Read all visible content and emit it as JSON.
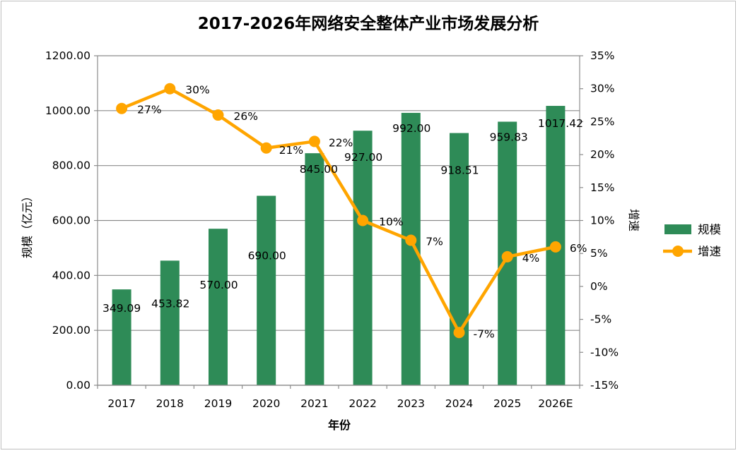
{
  "chart_data": {
    "type": "bar+line",
    "title": "2017-2026年网络安全整体产业市场发展分析",
    "xlabel": "年份",
    "ylabel": "规模（亿元）",
    "y2label": "增速",
    "categories": [
      "2017",
      "2018",
      "2019",
      "2020",
      "2021",
      "2022",
      "2023",
      "2024",
      "2025",
      "2026E"
    ],
    "series": [
      {
        "name": "规模",
        "type": "bar",
        "axis": "left",
        "color": "#2e8b57",
        "values": [
          349.09,
          453.82,
          570.0,
          690.0,
          845.0,
          927.0,
          992.0,
          918.51,
          959.83,
          1017.42
        ],
        "labels": [
          "349.09",
          "453.82",
          "570.00",
          "690.00",
          "845.00",
          "927.00",
          "992.00",
          "918.51",
          "959.83",
          "1017.42"
        ]
      },
      {
        "name": "增速",
        "type": "line",
        "axis": "right",
        "color": "#ffa500",
        "values": [
          0.27,
          0.3,
          0.26,
          0.21,
          0.22,
          0.1,
          0.07,
          -0.07,
          0.045,
          0.06
        ],
        "labels": [
          "27%",
          "30%",
          "26%",
          "21%",
          "22%",
          "10%",
          "7%",
          "-7%",
          "4%",
          "6%"
        ]
      }
    ],
    "ylim": [
      0,
      1200
    ],
    "y2lim": [
      -0.15,
      0.35
    ],
    "ytick_labels": [
      "0.00",
      "200.00",
      "400.00",
      "600.00",
      "800.00",
      "1000.00",
      "1200.00"
    ],
    "y2tick_labels": [
      "-15%",
      "-10%",
      "-5%",
      "0%",
      "5%",
      "10%",
      "15%",
      "20%",
      "25%",
      "30%",
      "35%"
    ],
    "grid": true,
    "legend": "right"
  }
}
